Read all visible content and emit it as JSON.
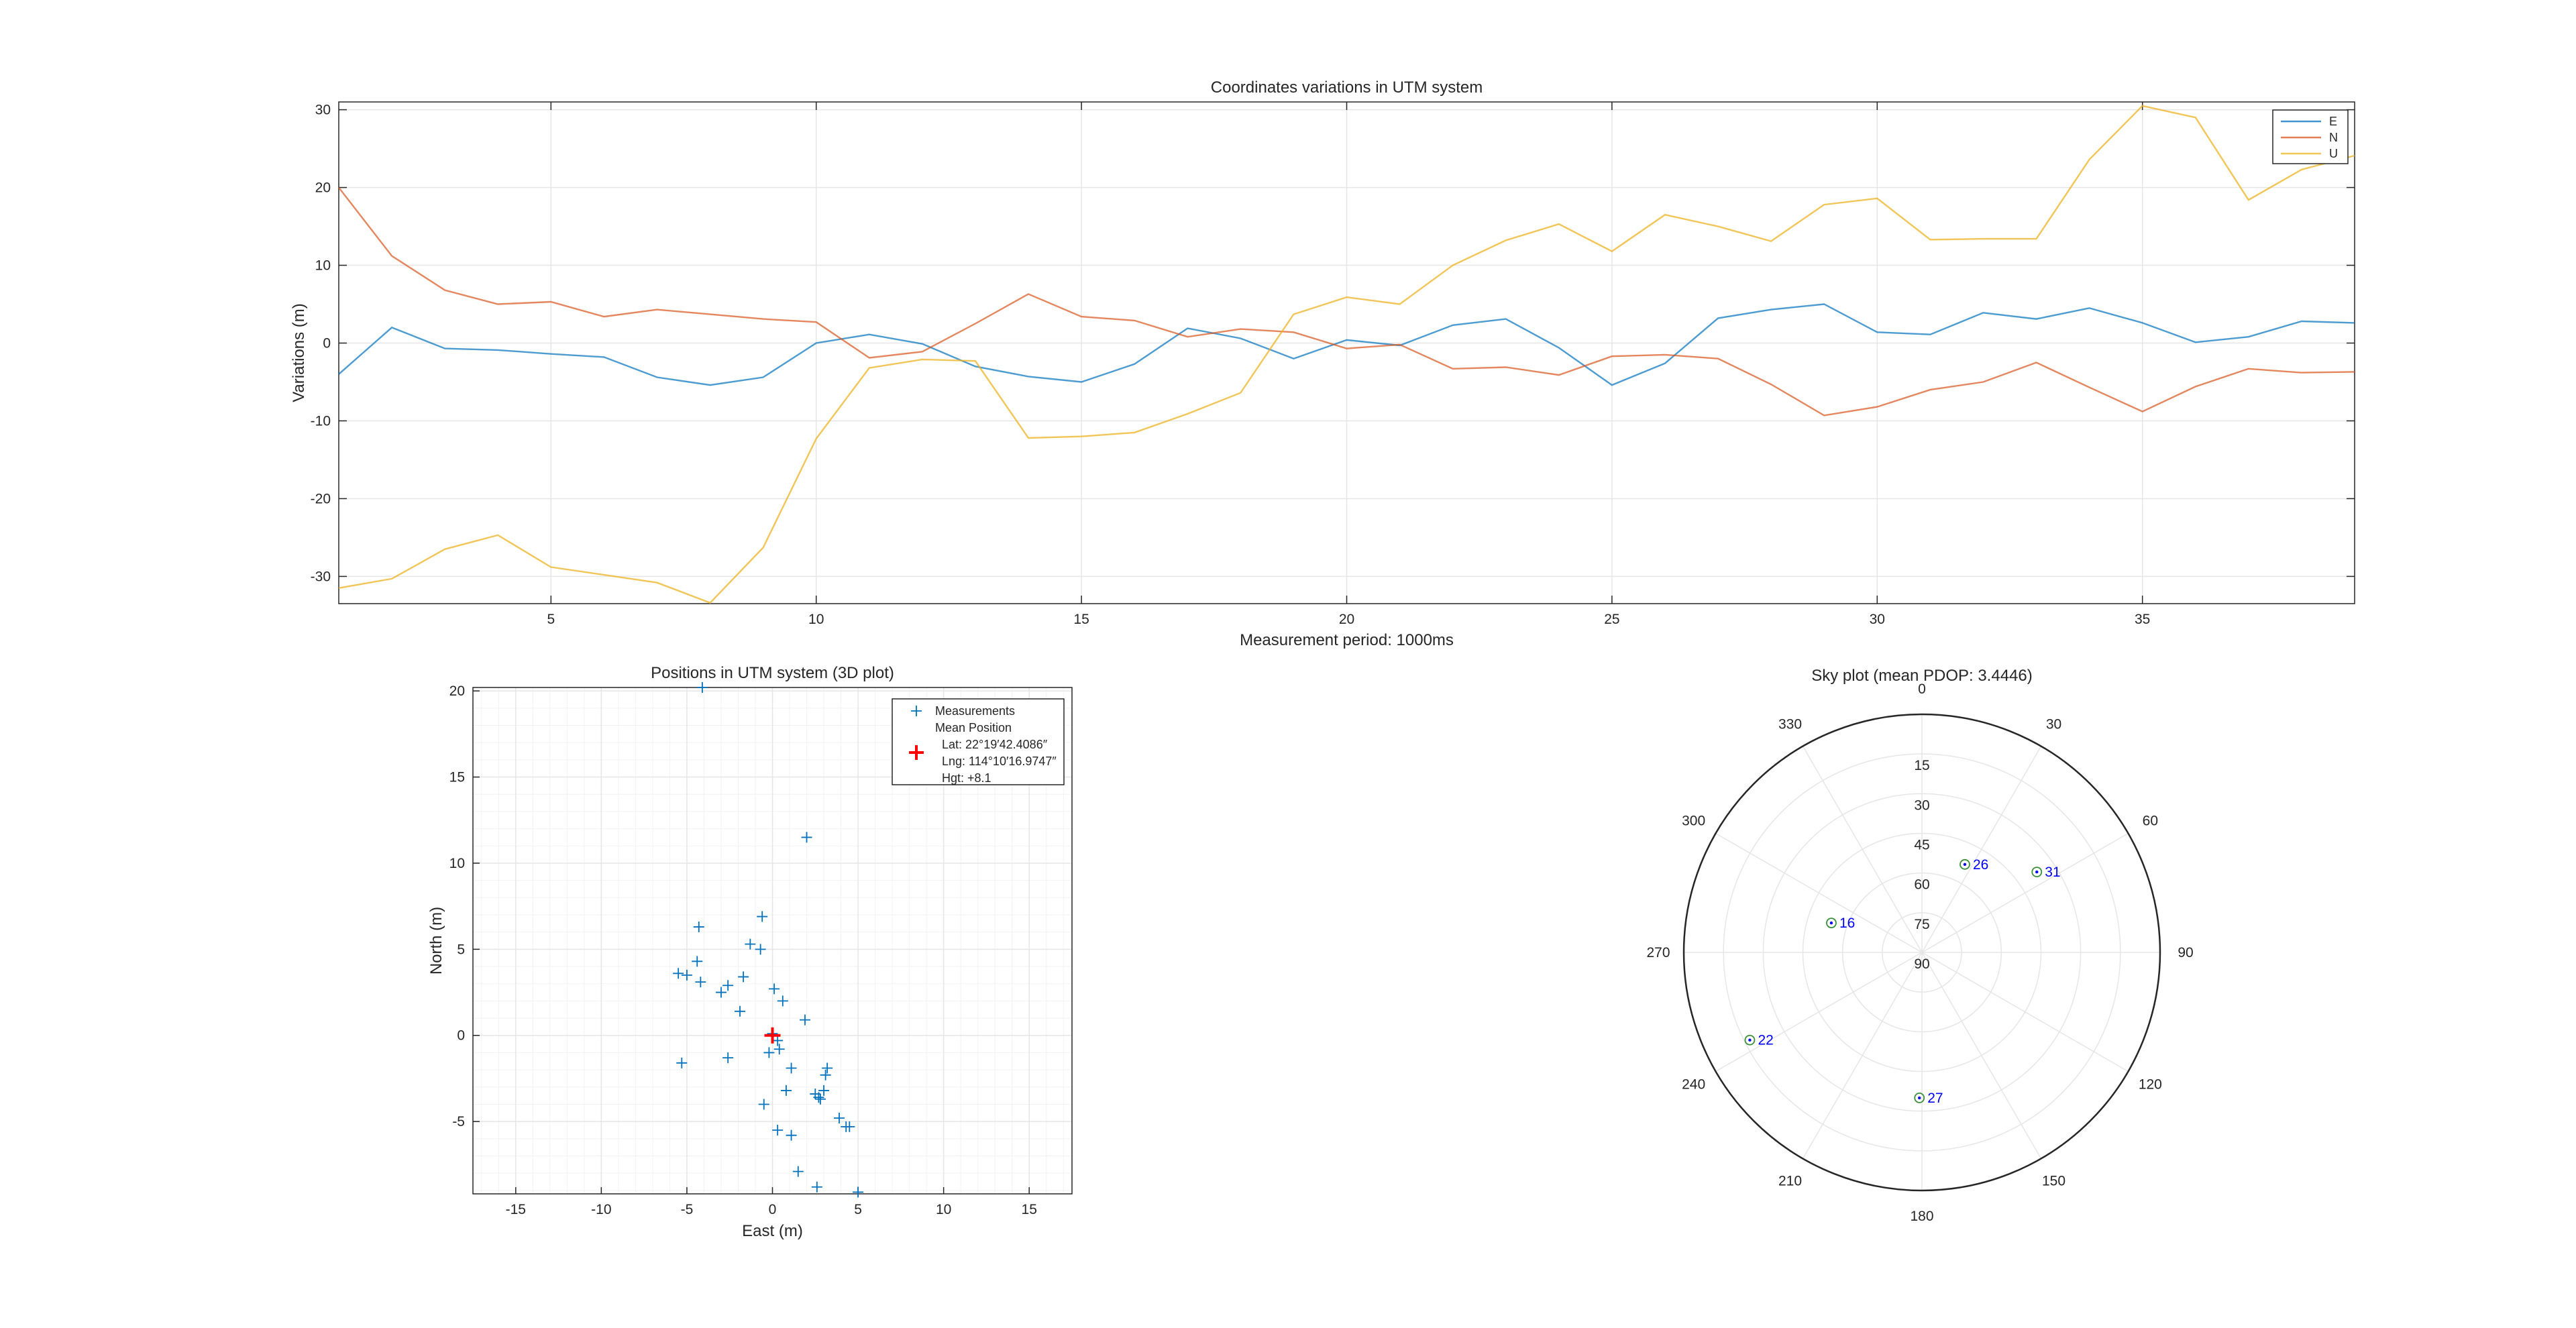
{
  "chart_data": [
    {
      "type": "line",
      "title": "Coordinates variations in UTM system",
      "xlabel": "Measurement period: 1000ms",
      "ylabel": "Variations (m)",
      "xlim": [
        1,
        39
      ],
      "ylim": [
        -33.5,
        31
      ],
      "xticks": [
        5,
        10,
        15,
        20,
        25,
        30,
        35
      ],
      "yticks": [
        -30,
        -20,
        -10,
        0,
        10,
        20,
        30
      ],
      "grid": true,
      "legend_position": "top-right",
      "x": [
        1,
        2,
        3,
        4,
        5,
        6,
        7,
        8,
        9,
        10,
        11,
        12,
        13,
        14,
        15,
        16,
        17,
        18,
        19,
        20,
        21,
        22,
        23,
        24,
        25,
        26,
        27,
        28,
        29,
        30,
        31,
        32,
        33,
        34,
        35,
        36,
        37,
        38,
        39
      ],
      "series": [
        {
          "name": "E",
          "color": "#0072BD",
          "values": [
            -4,
            2,
            -0.7,
            -0.9,
            -1.4,
            -1.8,
            -4.4,
            -5.4,
            -4.4,
            0,
            1.1,
            -0.1,
            -3,
            -4.3,
            -5,
            -2.7,
            1.9,
            0.6,
            -2,
            0.4,
            -0.3,
            2.3,
            3.1,
            -0.6,
            -5.4,
            -2.6,
            3.2,
            4.3,
            5,
            1.4,
            1.1,
            3.9,
            3.1,
            4.5,
            2.6,
            0.1,
            0.8,
            2.8,
            2.6
          ]
        },
        {
          "name": "N",
          "color": "#D95319",
          "values": [
            20,
            11.2,
            6.8,
            5,
            5.3,
            3.4,
            4.3,
            3.7,
            3.1,
            2.7,
            -1.9,
            -1.1,
            2.5,
            6.3,
            3.4,
            2.9,
            0.8,
            1.8,
            1.4,
            -0.7,
            -0.2,
            -3.3,
            -3.1,
            -4.1,
            -1.7,
            -1.5,
            -2,
            -5.3,
            -9.3,
            -8.2,
            -6,
            -5,
            -2.5,
            -5.7,
            -8.8,
            -5.6,
            -3.3,
            -3.8,
            -3.7
          ]
        },
        {
          "name": "U",
          "color": "#EDB120",
          "values": [
            -31.5,
            -30.3,
            -26.5,
            -24.7,
            -28.8,
            -29.8,
            -30.8,
            -33.4,
            -26.3,
            -12.3,
            -3.2,
            -2.1,
            -2.3,
            -12.2,
            -12,
            -11.5,
            -9.1,
            -6.4,
            3.7,
            5.9,
            5,
            10,
            13.2,
            15.3,
            11.8,
            16.5,
            15,
            13.1,
            17.8,
            18.6,
            13.3,
            13.4,
            13.4,
            23.6,
            30.5,
            29,
            18.4,
            22.3,
            24.1
          ]
        }
      ]
    },
    {
      "type": "scatter",
      "title": "Positions in UTM system (3D plot)",
      "xlabel": "East (m)",
      "ylabel": "North (m)",
      "xlim": [
        -17.5,
        17.5
      ],
      "ylim": [
        -9.2,
        20.2
      ],
      "xticks": [
        -15,
        -10,
        -5,
        0,
        5,
        10,
        15
      ],
      "yticks": [
        -5,
        0,
        5,
        10,
        15,
        20
      ],
      "grid": true,
      "legend_position": "top-right",
      "series": [
        {
          "name": "Measurements",
          "color": "#0072BD",
          "marker": "+",
          "points": [
            [
              -4.1,
              20.2
            ],
            [
              2.0,
              11.5
            ],
            [
              -0.6,
              6.9
            ],
            [
              -4.3,
              6.3
            ],
            [
              -1.3,
              5.3
            ],
            [
              -0.7,
              5.0
            ],
            [
              -4.4,
              4.3
            ],
            [
              -5.5,
              3.6
            ],
            [
              -5.0,
              3.5
            ],
            [
              -4.2,
              3.1
            ],
            [
              -2.6,
              2.9
            ],
            [
              -1.7,
              3.4
            ],
            [
              -3.0,
              2.5
            ],
            [
              0.1,
              2.7
            ],
            [
              0.6,
              2.0
            ],
            [
              -1.9,
              1.4
            ],
            [
              1.9,
              0.9
            ],
            [
              0.0,
              0.1
            ],
            [
              0.3,
              -0.3
            ],
            [
              -0.2,
              -1.0
            ],
            [
              0.4,
              -0.8
            ],
            [
              -2.6,
              -1.3
            ],
            [
              -5.3,
              -1.6
            ],
            [
              1.1,
              -1.9
            ],
            [
              3.2,
              -1.9
            ],
            [
              3.1,
              -2.3
            ],
            [
              0.8,
              -3.2
            ],
            [
              2.5,
              -3.4
            ],
            [
              2.7,
              -3.6
            ],
            [
              3.0,
              -3.2
            ],
            [
              2.8,
              -3.7
            ],
            [
              -0.5,
              -4.0
            ],
            [
              3.9,
              -4.8
            ],
            [
              4.3,
              -5.3
            ],
            [
              4.5,
              -5.3
            ],
            [
              0.3,
              -5.5
            ],
            [
              1.1,
              -5.8
            ],
            [
              1.5,
              -7.9
            ],
            [
              2.6,
              -8.8
            ],
            [
              5.0,
              -9.1
            ]
          ]
        },
        {
          "name": "Mean Position",
          "color": "#FF0000",
          "marker": "+",
          "points": [
            [
              0,
              0
            ]
          ]
        }
      ],
      "legend_lines": [
        "Measurements",
        "Mean Position",
        "Lat: 22°19′42.4086″",
        "Lng: 114°10′16.9747″",
        "Hgt: +8.1"
      ]
    },
    {
      "type": "polar",
      "title": "Sky plot (mean PDOP: 3.4446)",
      "azimuth_ticks": [
        "0",
        "30",
        "60",
        "90",
        "120",
        "150",
        "180",
        "210",
        "240",
        "270",
        "300",
        "330"
      ],
      "elevation_ticks": [
        "15",
        "30",
        "45",
        "60",
        "75",
        "90"
      ],
      "satellites": [
        {
          "prn": "26",
          "azimuth": 26,
          "elevation": 53
        },
        {
          "prn": "31",
          "azimuth": 55,
          "elevation": 37
        },
        {
          "prn": "16",
          "azimuth": 288,
          "elevation": 54
        },
        {
          "prn": "22",
          "azimuth": 243,
          "elevation": 17
        },
        {
          "prn": "27",
          "azimuth": 181,
          "elevation": 35
        }
      ],
      "satellite_color": "#0000FF"
    }
  ]
}
